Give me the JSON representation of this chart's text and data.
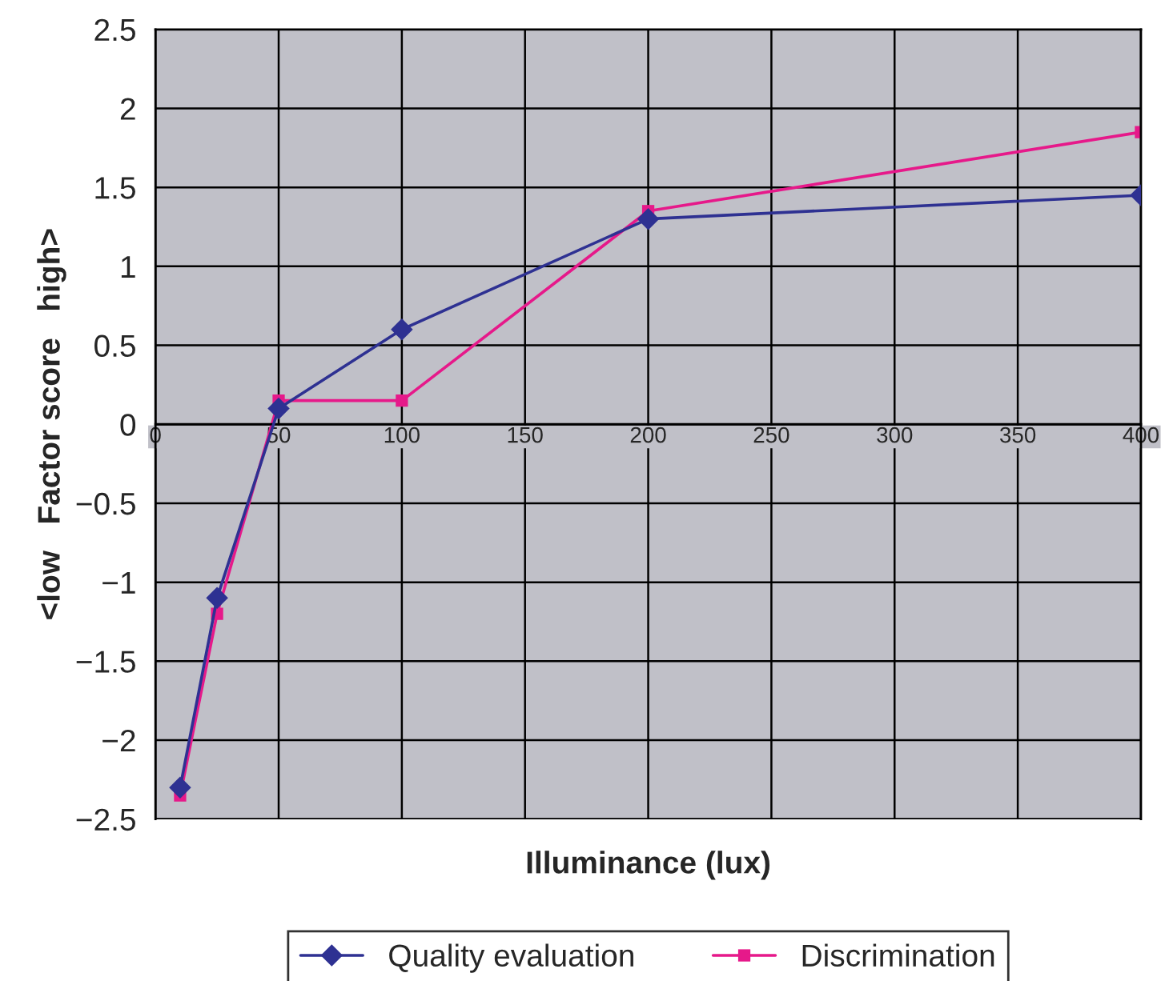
{
  "chart_data": {
    "type": "line",
    "xlabel": "Illuminance (lux)",
    "ylabel": "<low   Factor score   high>",
    "series": [
      {
        "name": "Quality evaluation",
        "color": "#2e3192",
        "marker": "diamond",
        "x": [
          10,
          25,
          50,
          100,
          200,
          400
        ],
        "values": [
          -2.3,
          -1.1,
          0.1,
          0.6,
          1.3,
          1.45
        ]
      },
      {
        "name": "Discrimination",
        "color": "#e6198a",
        "marker": "square",
        "x": [
          10,
          25,
          50,
          100,
          200,
          400
        ],
        "values": [
          -2.35,
          -1.2,
          0.15,
          0.15,
          1.35,
          1.85
        ]
      }
    ],
    "xlim": [
      0,
      400
    ],
    "xticks": [
      0,
      50,
      100,
      150,
      200,
      250,
      300,
      350,
      400
    ],
    "ylim": [
      -2.5,
      2.5
    ],
    "yticks": [
      {
        "value": -2.5,
        "label": "−2.5"
      },
      {
        "value": -2,
        "label": "−2"
      },
      {
        "value": -1.5,
        "label": "−1.5"
      },
      {
        "value": -1,
        "label": "−1"
      },
      {
        "value": -0.5,
        "label": "−0.5"
      },
      0,
      0.5,
      1,
      1.5,
      2,
      2.5
    ],
    "grid": true,
    "legend": "bottom",
    "line_style": "solid"
  }
}
